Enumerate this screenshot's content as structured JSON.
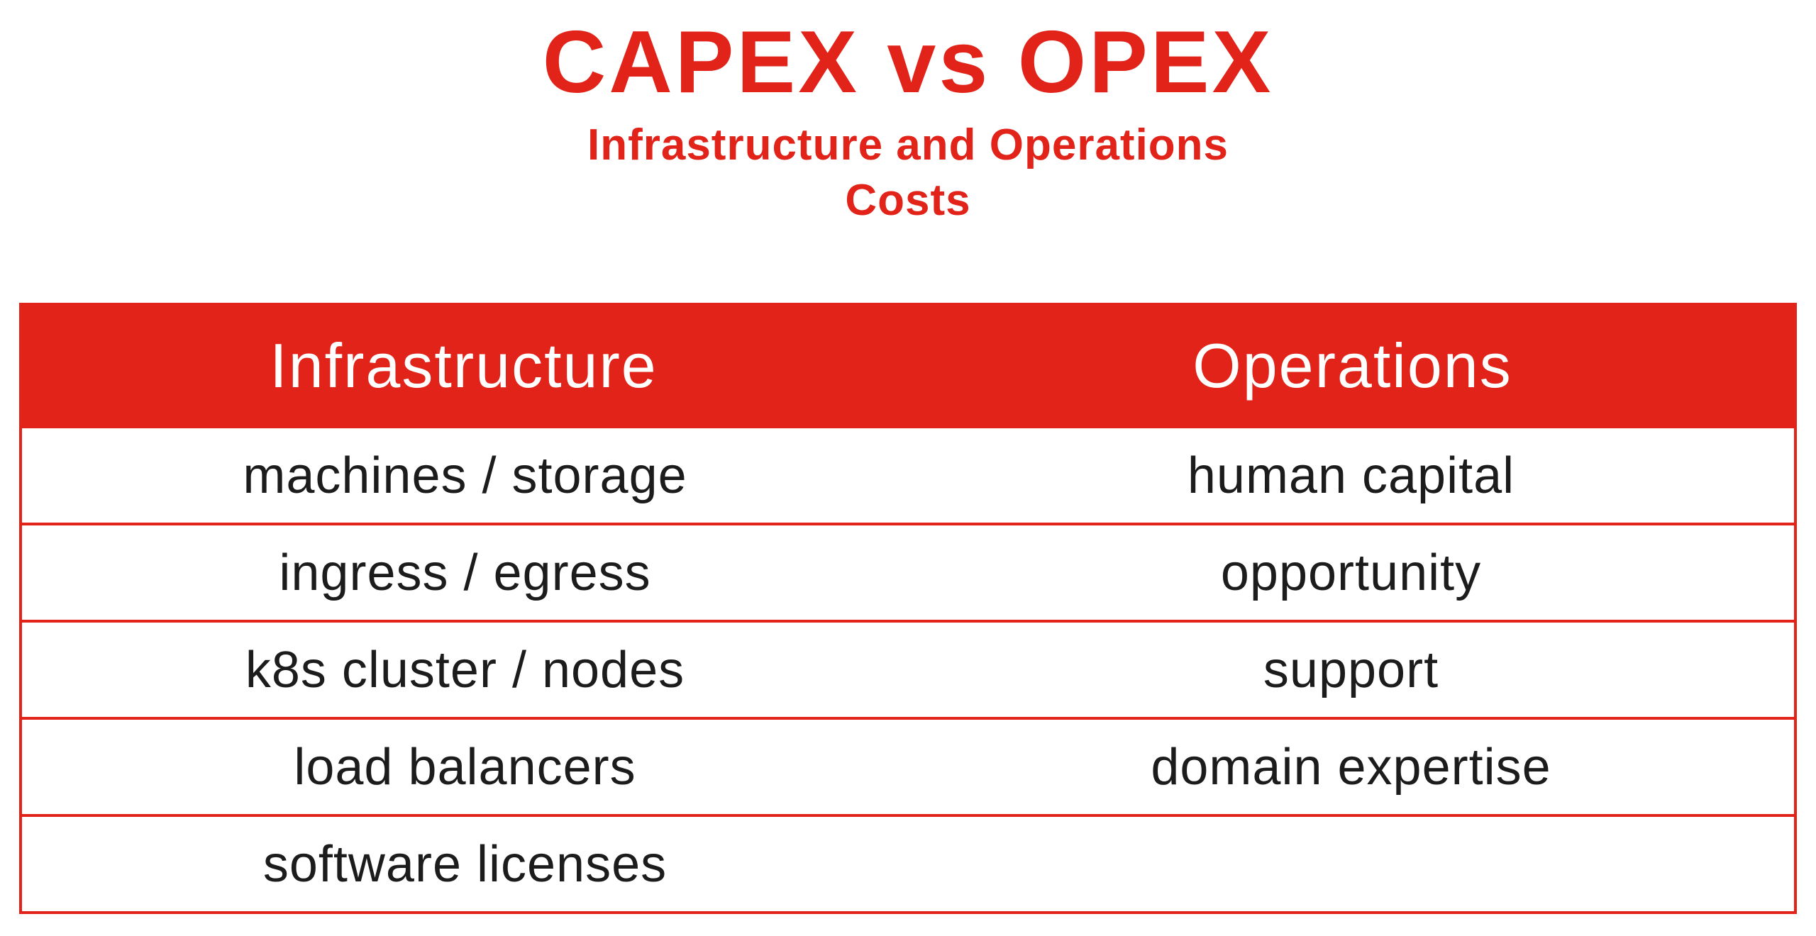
{
  "header": {
    "title": "CAPEX vs OPEX",
    "subtitle_line1": "Infrastructure and Operations",
    "subtitle_line2": "Costs"
  },
  "colors": {
    "accent_red": "#E2231A",
    "header_text": "#ffffff",
    "body_text": "#1c1c1c",
    "background": "#ffffff"
  },
  "table": {
    "columns": [
      "Infrastructure",
      "Operations"
    ],
    "rows": [
      [
        "machines / storage",
        "human capital"
      ],
      [
        "ingress / egress",
        "opportunity"
      ],
      [
        "k8s cluster / nodes",
        "support"
      ],
      [
        "load balancers",
        "domain expertise"
      ],
      [
        "software licenses",
        ""
      ]
    ]
  },
  "chart_data": {
    "type": "table",
    "title": "CAPEX vs OPEX",
    "subtitle": "Infrastructure and Operations Costs",
    "columns": [
      "Infrastructure",
      "Operations"
    ],
    "rows": [
      [
        "machines / storage",
        "human capital"
      ],
      [
        "ingress / egress",
        "opportunity"
      ],
      [
        "k8s cluster / nodes",
        "support"
      ],
      [
        "load balancers",
        "domain expertise"
      ],
      [
        "software licenses",
        ""
      ]
    ],
    "legend_position": "none",
    "grid": "horizontal-red-rules"
  }
}
